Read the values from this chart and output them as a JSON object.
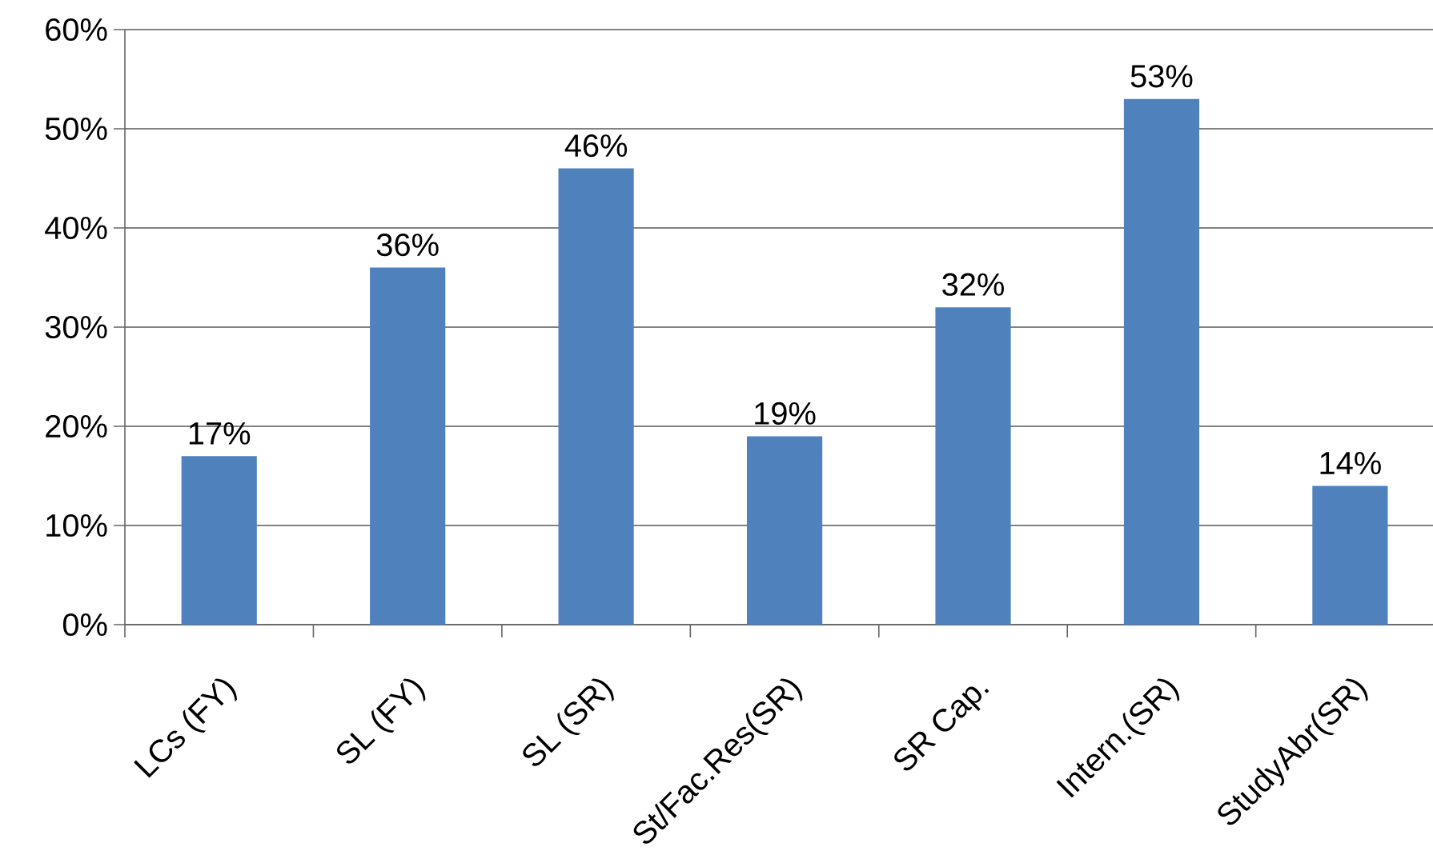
{
  "chart_data": {
    "type": "bar",
    "categories": [
      "LCs (FY)",
      "SL (FY)",
      "SL (SR)",
      "St/Fac.Res(SR)",
      "SR Cap.",
      "Intern.(SR)",
      "StudyAbr(SR)"
    ],
    "values": [
      17,
      36,
      46,
      19,
      32,
      53,
      14
    ],
    "value_labels": [
      "17%",
      "36%",
      "46%",
      "19%",
      "32%",
      "53%",
      "14%"
    ],
    "color": "#4f81bd",
    "ylim": [
      0,
      60
    ],
    "yticks": [
      {
        "value": 0,
        "label": "0%"
      },
      {
        "value": 10,
        "label": "10%"
      },
      {
        "value": 20,
        "label": "20%"
      },
      {
        "value": 30,
        "label": "30%"
      },
      {
        "value": 40,
        "label": "40%"
      },
      {
        "value": 50,
        "label": "50%"
      },
      {
        "value": 60,
        "label": "60%"
      }
    ],
    "grid": "y"
  }
}
